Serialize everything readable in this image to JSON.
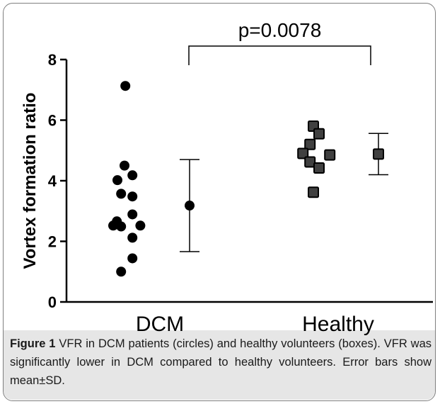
{
  "chart_data": {
    "type": "scatter",
    "ylabel": "Vortex formation ratio",
    "ylim": [
      0,
      8
    ],
    "yticks": [
      "0",
      "2",
      "4",
      "6",
      "8"
    ],
    "categories": [
      "DCM",
      "Healthy"
    ],
    "series": [
      {
        "category": "DCM",
        "marker": "circle",
        "points": [
          {
            "jitter": 0.03,
            "y": 7.13
          },
          {
            "jitter": -0.25,
            "y": 4.02
          },
          {
            "jitter": 0.0,
            "y": 4.5
          },
          {
            "jitter": 0.28,
            "y": 4.18
          },
          {
            "jitter": -0.12,
            "y": 3.57
          },
          {
            "jitter": 0.28,
            "y": 3.48
          },
          {
            "jitter": 0.28,
            "y": 2.89
          },
          {
            "jitter": -0.4,
            "y": 2.52
          },
          {
            "jitter": -0.27,
            "y": 2.66
          },
          {
            "jitter": -0.12,
            "y": 2.49
          },
          {
            "jitter": 0.56,
            "y": 2.52
          },
          {
            "jitter": 0.28,
            "y": 2.12
          },
          {
            "jitter": 0.28,
            "y": 1.44
          },
          {
            "jitter": -0.12,
            "y": 1.0
          }
        ],
        "mean": 3.18,
        "sd": 1.52
      },
      {
        "category": "Healthy",
        "marker": "square",
        "points": [
          {
            "jitter": 0.0,
            "y": 5.8
          },
          {
            "jitter": 0.2,
            "y": 5.55
          },
          {
            "jitter": -0.12,
            "y": 5.2
          },
          {
            "jitter": -0.37,
            "y": 4.9
          },
          {
            "jitter": 0.58,
            "y": 4.85
          },
          {
            "jitter": -0.12,
            "y": 4.62
          },
          {
            "jitter": 0.2,
            "y": 4.42
          },
          {
            "jitter": 0.0,
            "y": 3.62
          }
        ],
        "mean": 4.88,
        "sd": 0.68
      }
    ],
    "annotation": "p=0.0078",
    "colors": {
      "dcm_marker": "#000000",
      "healthy_marker": "#404040",
      "healthy_edge": "#000000"
    }
  },
  "caption": {
    "label": "Figure 1",
    "text": " VFR in DCM patients (circles) and healthy volunteers (boxes). VFR was significantly lower in DCM compared to healthy volunteers. Error bars show mean±SD."
  }
}
